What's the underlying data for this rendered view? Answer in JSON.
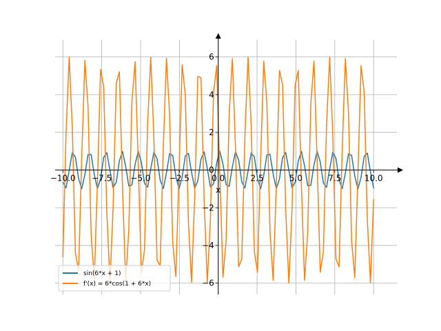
{
  "chart_data": {
    "type": "line",
    "title": "",
    "xlabel": "x",
    "ylabel": "",
    "xlim": [
      -10.5,
      11.5
    ],
    "ylim": [
      -6.6,
      6.9
    ],
    "grid": true,
    "legend_position": "lower-left",
    "x_ticks": [
      -10.0,
      -7.5,
      -5.0,
      -2.5,
      0.0,
      2.5,
      5.0,
      7.5,
      10.0
    ],
    "x_tick_labels": [
      "−10.0",
      "−7.5",
      "−5.0",
      "−2.5",
      "0.0",
      "2.5",
      "5.0",
      "7.5",
      "10.0"
    ],
    "y_ticks": [
      -6,
      -4,
      -2,
      0,
      2,
      4,
      6
    ],
    "y_tick_labels": [
      "−6",
      "−4",
      "−2",
      "0",
      "2",
      "4",
      "6"
    ],
    "sample_count": 100,
    "x_range": [
      -10,
      10
    ],
    "series": [
      {
        "name": "sin(6*x + 1)",
        "color": "#1f77b4",
        "amplitude": 1,
        "fn": "sin"
      },
      {
        "name": "f'(x) = 6*cos(1 + 6*x)",
        "color": "#ff7f0e",
        "amplitude": 6,
        "fn": "cos"
      }
    ]
  }
}
